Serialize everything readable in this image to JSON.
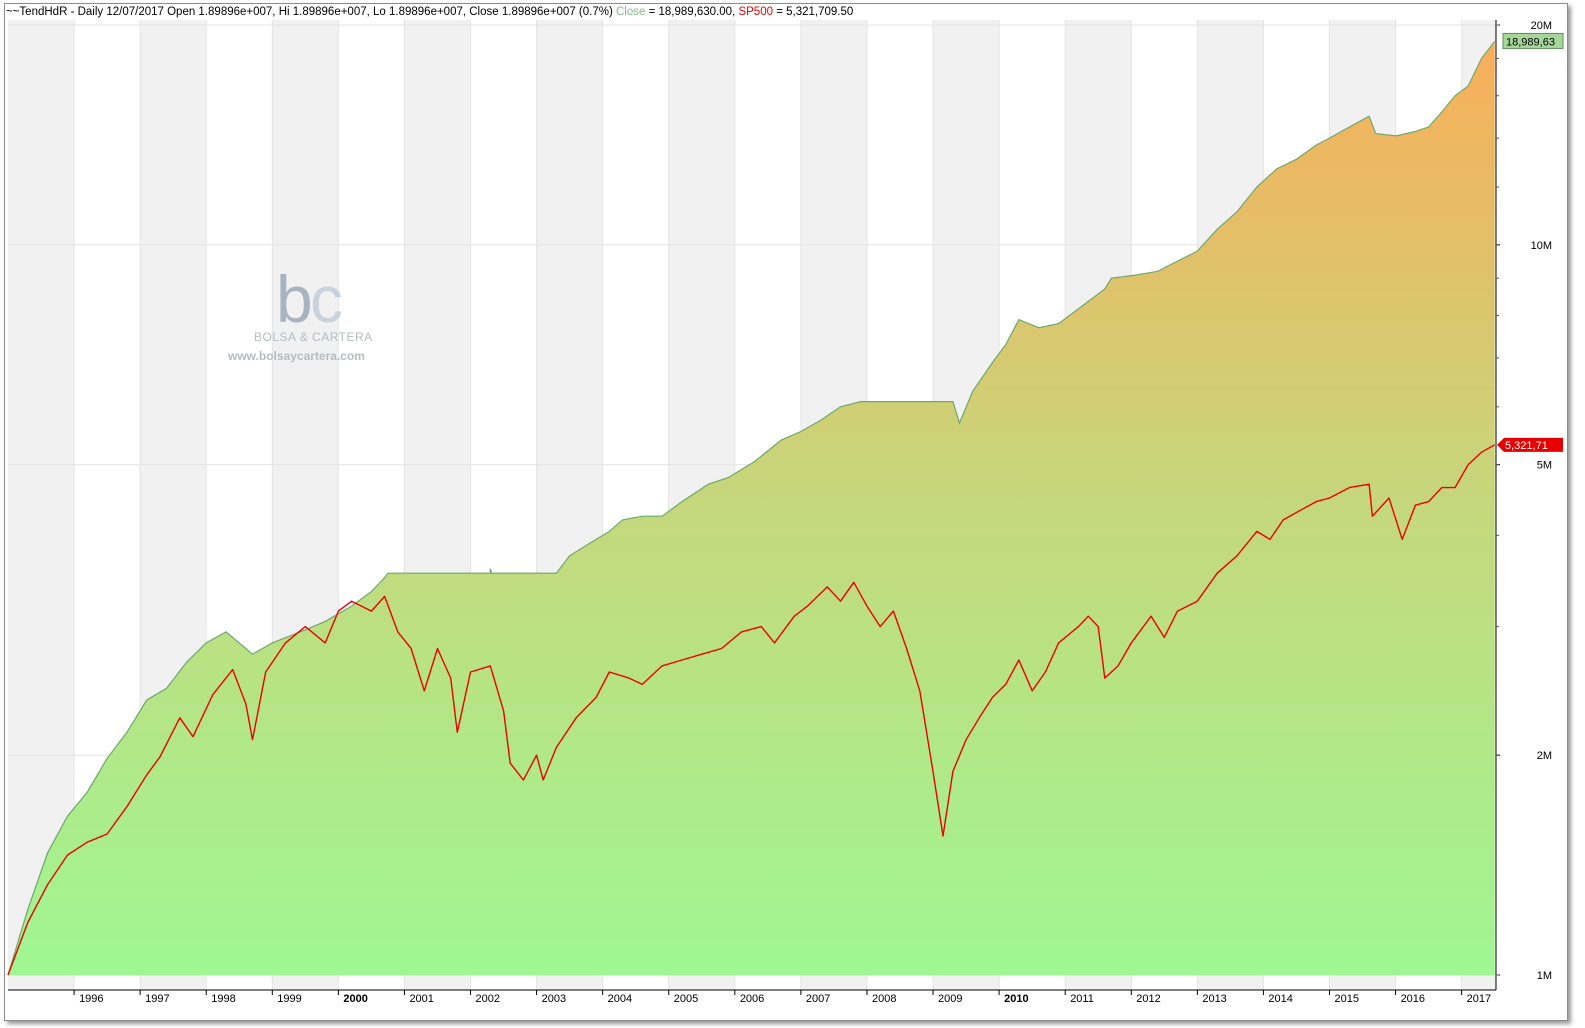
{
  "header": {
    "symbol": "~~TendHdR - Daily 12/07/2017",
    "ohlc": "Open 1.89896e+007, Hi 1.89896e+007, Lo 1.89896e+007, Close 1.89896e+007 (0.7%)",
    "close_label": "Close",
    "close_value": "= 18,989,630.00,",
    "sp_label": "SP500",
    "sp_value": "= 5,321,709.50"
  },
  "watermark": {
    "logo_b": "b",
    "logo_c": "c",
    "brand": "BOLSA & CARTERA",
    "url": "www.bolsaycartera.com"
  },
  "colors": {
    "equity_top": "#f9ae5a",
    "equity_mid": "#c5d87c",
    "equity_bottom": "#9ff793",
    "equity_edge": "#6fa86f",
    "sp500": "#ee0000",
    "band": "#f1f1f1",
    "grid": "#e4e4e4"
  },
  "price_tags": {
    "equity": "18,989,63",
    "sp500": "5,321,71"
  },
  "chart_data": {
    "type": "area",
    "scale": "log",
    "ylim": [
      1000000,
      21000000
    ],
    "y_ticks": [
      {
        "value": 1000000,
        "label": "1M"
      },
      {
        "value": 2000000,
        "label": "2M"
      },
      {
        "value": 5000000,
        "label": "5M"
      },
      {
        "value": 10000000,
        "label": "10M"
      },
      {
        "value": 20000000,
        "label": "20M"
      }
    ],
    "x_ticks": [
      "1996",
      "1997",
      "1998",
      "1999",
      "2000",
      "2001",
      "2002",
      "2003",
      "2004",
      "2005",
      "2006",
      "2007",
      "2008",
      "2009",
      "2010",
      "2011",
      "2012",
      "2013",
      "2014",
      "2015",
      "2016",
      "2017"
    ],
    "bold_ticks": [
      "2000",
      "2010"
    ],
    "xlim": [
      1995.0,
      2017.52
    ],
    "series": [
      {
        "name": "Close",
        "style": "area",
        "points": [
          [
            1995.0,
            1000000
          ],
          [
            1995.3,
            1230000
          ],
          [
            1995.6,
            1470000
          ],
          [
            1995.9,
            1650000
          ],
          [
            1996.2,
            1780000
          ],
          [
            1996.5,
            1980000
          ],
          [
            1996.8,
            2150000
          ],
          [
            1997.1,
            2380000
          ],
          [
            1997.4,
            2470000
          ],
          [
            1997.7,
            2680000
          ],
          [
            1998.0,
            2850000
          ],
          [
            1998.3,
            2950000
          ],
          [
            1998.5,
            2850000
          ],
          [
            1998.7,
            2750000
          ],
          [
            1999.0,
            2850000
          ],
          [
            1999.5,
            2970000
          ],
          [
            1999.8,
            3050000
          ],
          [
            2000.2,
            3200000
          ],
          [
            2000.5,
            3350000
          ],
          [
            2000.7,
            3500000
          ],
          [
            2000.75,
            3550000
          ],
          [
            2002.3,
            3550000
          ],
          [
            2002.3,
            3600000
          ],
          [
            2002.32,
            3550000
          ],
          [
            2003.3,
            3550000
          ],
          [
            2003.5,
            3750000
          ],
          [
            2003.8,
            3900000
          ],
          [
            2004.1,
            4050000
          ],
          [
            2004.3,
            4200000
          ],
          [
            2004.6,
            4250000
          ],
          [
            2004.6,
            4250000
          ],
          [
            2004.9,
            4250000
          ],
          [
            2005.2,
            4450000
          ],
          [
            2005.6,
            4700000
          ],
          [
            2005.9,
            4800000
          ],
          [
            2006.3,
            5050000
          ],
          [
            2006.7,
            5400000
          ],
          [
            2007.0,
            5550000
          ],
          [
            2007.3,
            5750000
          ],
          [
            2007.6,
            6000000
          ],
          [
            2007.9,
            6100000
          ],
          [
            2008.0,
            6100000
          ],
          [
            2008.5,
            6100000
          ],
          [
            2009.3,
            6100000
          ],
          [
            2009.4,
            5700000
          ],
          [
            2009.6,
            6300000
          ],
          [
            2009.9,
            6900000
          ],
          [
            2010.1,
            7300000
          ],
          [
            2010.3,
            7900000
          ],
          [
            2010.6,
            7700000
          ],
          [
            2010.9,
            7800000
          ],
          [
            2011.3,
            8300000
          ],
          [
            2011.6,
            8700000
          ],
          [
            2011.7,
            9000000
          ],
          [
            2012.1,
            9100000
          ],
          [
            2012.4,
            9200000
          ],
          [
            2012.7,
            9500000
          ],
          [
            2013.0,
            9800000
          ],
          [
            2013.3,
            10500000
          ],
          [
            2013.6,
            11100000
          ],
          [
            2013.9,
            12000000
          ],
          [
            2014.2,
            12700000
          ],
          [
            2014.5,
            13100000
          ],
          [
            2014.8,
            13700000
          ],
          [
            2015.0,
            14000000
          ],
          [
            2015.3,
            14500000
          ],
          [
            2015.6,
            15000000
          ],
          [
            2015.7,
            14200000
          ],
          [
            2016.0,
            14100000
          ],
          [
            2016.3,
            14300000
          ],
          [
            2016.5,
            14500000
          ],
          [
            2016.7,
            15200000
          ],
          [
            2016.9,
            16000000
          ],
          [
            2017.1,
            16500000
          ],
          [
            2017.3,
            18000000
          ],
          [
            2017.5,
            18989630
          ]
        ]
      },
      {
        "name": "SP500",
        "style": "line",
        "points": [
          [
            1995.0,
            1000000
          ],
          [
            1995.3,
            1180000
          ],
          [
            1995.6,
            1330000
          ],
          [
            1995.9,
            1460000
          ],
          [
            1996.2,
            1520000
          ],
          [
            1996.5,
            1560000
          ],
          [
            1996.8,
            1700000
          ],
          [
            1997.1,
            1880000
          ],
          [
            1997.3,
            1990000
          ],
          [
            1997.6,
            2250000
          ],
          [
            1997.8,
            2120000
          ],
          [
            1998.1,
            2420000
          ],
          [
            1998.4,
            2620000
          ],
          [
            1998.6,
            2350000
          ],
          [
            1998.7,
            2100000
          ],
          [
            1998.9,
            2600000
          ],
          [
            1999.2,
            2850000
          ],
          [
            1999.5,
            3000000
          ],
          [
            1999.8,
            2850000
          ],
          [
            2000.0,
            3150000
          ],
          [
            2000.2,
            3250000
          ],
          [
            2000.5,
            3150000
          ],
          [
            2000.7,
            3300000
          ],
          [
            2000.9,
            2950000
          ],
          [
            2001.1,
            2800000
          ],
          [
            2001.3,
            2450000
          ],
          [
            2001.5,
            2800000
          ],
          [
            2001.7,
            2550000
          ],
          [
            2001.8,
            2150000
          ],
          [
            2002.0,
            2600000
          ],
          [
            2002.3,
            2650000
          ],
          [
            2002.5,
            2300000
          ],
          [
            2002.6,
            1950000
          ],
          [
            2002.8,
            1850000
          ],
          [
            2003.0,
            2000000
          ],
          [
            2003.1,
            1850000
          ],
          [
            2003.3,
            2050000
          ],
          [
            2003.6,
            2250000
          ],
          [
            2003.9,
            2400000
          ],
          [
            2004.1,
            2600000
          ],
          [
            2004.4,
            2550000
          ],
          [
            2004.6,
            2500000
          ],
          [
            2004.9,
            2650000
          ],
          [
            2005.2,
            2700000
          ],
          [
            2005.5,
            2750000
          ],
          [
            2005.8,
            2800000
          ],
          [
            2006.1,
            2950000
          ],
          [
            2006.4,
            3000000
          ],
          [
            2006.6,
            2850000
          ],
          [
            2006.9,
            3100000
          ],
          [
            2007.1,
            3200000
          ],
          [
            2007.4,
            3400000
          ],
          [
            2007.6,
            3250000
          ],
          [
            2007.8,
            3450000
          ],
          [
            2008.0,
            3200000
          ],
          [
            2008.2,
            3000000
          ],
          [
            2008.4,
            3150000
          ],
          [
            2008.6,
            2800000
          ],
          [
            2008.8,
            2450000
          ],
          [
            2009.0,
            1900000
          ],
          [
            2009.15,
            1550000
          ],
          [
            2009.3,
            1900000
          ],
          [
            2009.5,
            2100000
          ],
          [
            2009.7,
            2250000
          ],
          [
            2009.9,
            2400000
          ],
          [
            2010.1,
            2500000
          ],
          [
            2010.3,
            2700000
          ],
          [
            2010.5,
            2450000
          ],
          [
            2010.7,
            2600000
          ],
          [
            2010.9,
            2850000
          ],
          [
            2011.2,
            3000000
          ],
          [
            2011.35,
            3100000
          ],
          [
            2011.5,
            3000000
          ],
          [
            2011.6,
            2550000
          ],
          [
            2011.8,
            2650000
          ],
          [
            2012.0,
            2850000
          ],
          [
            2012.3,
            3100000
          ],
          [
            2012.5,
            2900000
          ],
          [
            2012.7,
            3150000
          ],
          [
            2013.0,
            3250000
          ],
          [
            2013.3,
            3550000
          ],
          [
            2013.6,
            3750000
          ],
          [
            2013.9,
            4050000
          ],
          [
            2014.1,
            3950000
          ],
          [
            2014.3,
            4200000
          ],
          [
            2014.6,
            4350000
          ],
          [
            2014.8,
            4450000
          ],
          [
            2015.0,
            4500000
          ],
          [
            2015.3,
            4650000
          ],
          [
            2015.6,
            4700000
          ],
          [
            2015.65,
            4250000
          ],
          [
            2015.9,
            4500000
          ],
          [
            2016.1,
            3950000
          ],
          [
            2016.3,
            4400000
          ],
          [
            2016.5,
            4450000
          ],
          [
            2016.7,
            4650000
          ],
          [
            2016.9,
            4650000
          ],
          [
            2017.1,
            5000000
          ],
          [
            2017.3,
            5200000
          ],
          [
            2017.5,
            5321709.5
          ]
        ]
      }
    ]
  }
}
